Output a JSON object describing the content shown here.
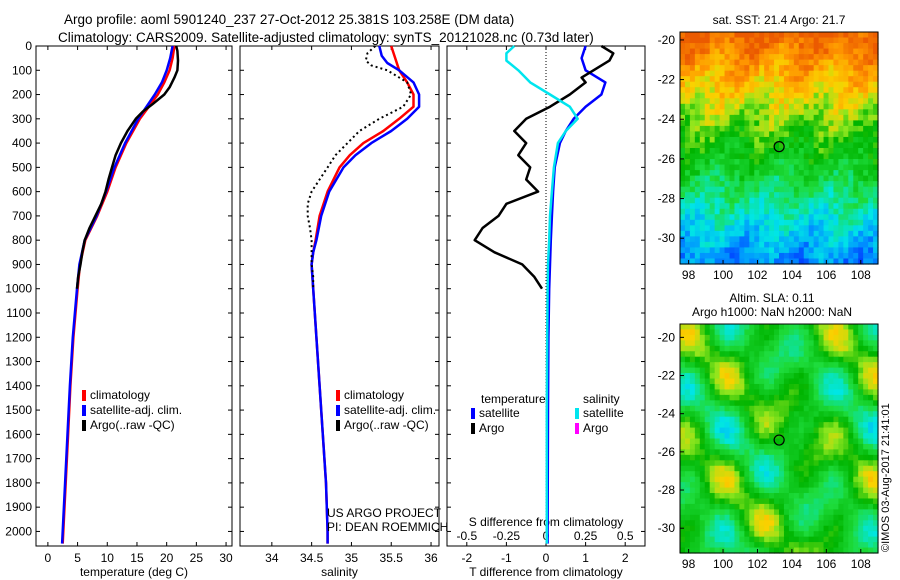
{
  "header": {
    "line1": "Argo profile: aoml 5901240_237 27-Oct-2012 25.381S 103.258E (DM data)",
    "line2": "Climatology: CARS2009. Satellite-adjusted climatology: synTS_20121028.nc (0.73d later)"
  },
  "colors": {
    "climatology": "#ff0000",
    "satellite": "#0000ff",
    "argo": "#000000",
    "sat_salinity": "#00e5ee",
    "argo_salinity": "#ff00ff"
  },
  "chart_data": [
    {
      "type": "line",
      "name": "temperature",
      "xlabel": "temperature (deg C)",
      "xlim": [
        -2,
        31
      ],
      "ylim": [
        0,
        2060
      ],
      "xticks": [
        0,
        5,
        10,
        15,
        20,
        25,
        30
      ],
      "yticks": [
        0,
        100,
        200,
        300,
        400,
        500,
        600,
        700,
        800,
        900,
        1000,
        1100,
        1200,
        1300,
        1400,
        1500,
        1600,
        1700,
        1800,
        1900,
        2000
      ],
      "legend": [
        "climatology",
        "satellite-adj. clim.",
        "Argo(..raw -QC)"
      ],
      "series": [
        {
          "name": "climatology",
          "color": "#ff0000",
          "depth": [
            0,
            50,
            100,
            150,
            200,
            250,
            300,
            400,
            500,
            600,
            700,
            800,
            900,
            1000,
            1200,
            1400,
            1600,
            1800,
            2000,
            2050
          ],
          "values": [
            21.3,
            21.0,
            20.5,
            19.6,
            18.5,
            17.0,
            15.5,
            13.2,
            11.4,
            10.0,
            8.3,
            6.3,
            5.4,
            5.0,
            4.3,
            3.8,
            3.4,
            3.0,
            2.6,
            2.5
          ]
        },
        {
          "name": "satellite-adj. clim.",
          "color": "#0000ff",
          "depth": [
            0,
            50,
            100,
            150,
            200,
            250,
            300,
            400,
            500,
            600,
            700,
            800,
            900,
            1000,
            1200,
            1400,
            1600,
            1800,
            2000,
            2050
          ],
          "values": [
            21.0,
            20.6,
            20.0,
            19.2,
            18.0,
            16.6,
            15.2,
            13.0,
            11.2,
            9.8,
            8.2,
            6.2,
            5.3,
            4.9,
            4.2,
            3.7,
            3.3,
            2.9,
            2.5,
            2.4
          ]
        },
        {
          "name": "Argo(..raw -QC)",
          "color": "#000000",
          "depth": [
            0,
            20,
            60,
            100,
            130,
            170,
            200,
            240,
            270,
            300,
            350,
            400,
            450,
            500,
            550,
            600,
            650,
            700,
            750,
            800,
            850,
            900,
            950,
            1000
          ],
          "values": [
            21.6,
            21.8,
            21.9,
            21.8,
            21.3,
            20.5,
            19.6,
            17.6,
            16.0,
            14.8,
            13.4,
            12.3,
            11.4,
            10.8,
            10.2,
            9.7,
            9.0,
            8.0,
            7.0,
            6.2,
            5.8,
            5.5,
            5.1,
            4.9
          ]
        }
      ]
    },
    {
      "type": "line",
      "name": "salinity",
      "xlabel": "salinity",
      "xlim": [
        33.6,
        36.1
      ],
      "ylim": [
        0,
        2060
      ],
      "xticks": [
        34,
        34.5,
        35,
        35.5,
        36
      ],
      "xticklabels": [
        "34",
        "34.5",
        "35",
        "35.5",
        "36"
      ],
      "legend": [
        "climatology",
        "satellite-adj. clim.",
        "Argo(..raw -QC)"
      ],
      "annotation": [
        "US ARGO PROJECT",
        "PI: DEAN ROEMMICH"
      ],
      "series": [
        {
          "name": "climatology",
          "color": "#ff0000",
          "depth": [
            0,
            50,
            100,
            150,
            200,
            250,
            300,
            350,
            400,
            450,
            500,
            600,
            700,
            800,
            850,
            900,
            1000,
            1200,
            1400,
            1600,
            1800,
            2000,
            2050
          ],
          "values": [
            35.5,
            35.55,
            35.6,
            35.7,
            35.78,
            35.78,
            35.6,
            35.4,
            35.15,
            34.98,
            34.85,
            34.7,
            34.6,
            34.55,
            34.52,
            34.5,
            34.52,
            34.56,
            34.6,
            34.64,
            34.68,
            34.7,
            34.7
          ]
        },
        {
          "name": "satellite-adj. clim.",
          "color": "#0000ff",
          "depth": [
            0,
            40,
            70,
            100,
            150,
            200,
            250,
            300,
            350,
            400,
            450,
            500,
            600,
            700,
            800,
            850,
            900,
            1000,
            1200,
            1400,
            1600,
            1800,
            2000,
            2050
          ],
          "values": [
            35.35,
            35.38,
            35.45,
            35.6,
            35.78,
            35.85,
            35.85,
            35.7,
            35.5,
            35.25,
            35.05,
            34.9,
            34.72,
            34.62,
            34.56,
            34.52,
            34.5,
            34.52,
            34.56,
            34.6,
            34.64,
            34.68,
            34.7,
            34.7
          ]
        },
        {
          "name": "Argo(..raw -QC)",
          "color": "#000000",
          "dotted": true,
          "depth": [
            0,
            30,
            60,
            80,
            100,
            150,
            200,
            250,
            300,
            350,
            400,
            450,
            500,
            550,
            600,
            650,
            700,
            750,
            800,
            850,
            900,
            950,
            1000
          ],
          "values": [
            35.3,
            35.2,
            35.18,
            35.25,
            35.45,
            35.7,
            35.75,
            35.65,
            35.35,
            35.1,
            34.95,
            34.8,
            34.7,
            34.6,
            34.5,
            34.45,
            34.45,
            34.48,
            34.5,
            34.5,
            34.5,
            34.52,
            34.52
          ]
        }
      ]
    },
    {
      "type": "line",
      "name": "differences",
      "xlabel": "T difference from climatology",
      "xlabel_top": "S difference from climatology",
      "xlim": [
        -2.5,
        2.5
      ],
      "ylim": [
        0,
        2060
      ],
      "xticks": [
        -2,
        -1,
        0,
        1,
        2
      ],
      "xticklabels": [
        "-2",
        "-1",
        "0",
        "1",
        "2"
      ],
      "sticks": [
        -0.5,
        -0.25,
        0,
        0.25,
        0.5
      ],
      "sticklabels": [
        "-0.5",
        "-0.25",
        "0",
        "0.25",
        "0.5"
      ],
      "legend_temperature": {
        "title": "temperature",
        "items": [
          "satellite",
          "Argo"
        ]
      },
      "legend_salinity": {
        "title": "salinity",
        "items": [
          "satellite",
          "Argo"
        ]
      },
      "series": [
        {
          "name": "T satellite",
          "color": "#0000ff",
          "depth": [
            0,
            50,
            100,
            150,
            200,
            250,
            300,
            350,
            400,
            500,
            600,
            700,
            800,
            900,
            1000,
            1200,
            1500,
            2000,
            2050
          ],
          "values": [
            1.0,
            0.9,
            1.0,
            1.5,
            1.4,
            1.0,
            0.7,
            0.5,
            0.35,
            0.22,
            0.18,
            0.15,
            0.12,
            0.1,
            0.08,
            0.06,
            0.05,
            0.04,
            0.04
          ]
        },
        {
          "name": "T Argo",
          "color": "#000000",
          "depth": [
            0,
            30,
            60,
            100,
            130,
            150,
            200,
            250,
            300,
            350,
            400,
            450,
            500,
            550,
            600,
            650,
            700,
            750,
            800,
            850,
            900,
            950,
            1000
          ],
          "values": [
            1.4,
            1.7,
            1.6,
            1.2,
            0.9,
            1.0,
            0.6,
            0.1,
            -0.5,
            -0.8,
            -0.5,
            -0.7,
            -0.4,
            -0.5,
            -0.2,
            -1.0,
            -1.2,
            -1.6,
            -1.8,
            -1.3,
            -0.6,
            -0.3,
            -0.1
          ]
        },
        {
          "name": "S satellite",
          "color": "#00e5ee",
          "depth": [
            0,
            30,
            60,
            100,
            150,
            200,
            250,
            300,
            350,
            400,
            500,
            600,
            700,
            800,
            900,
            1000,
            1200,
            1500,
            2000,
            2050
          ],
          "values": [
            -0.8,
            -1.0,
            -1.0,
            -0.7,
            -0.4,
            0.1,
            0.6,
            0.8,
            0.5,
            0.3,
            0.2,
            0.15,
            0.1,
            0.08,
            0.05,
            0.04,
            0.03,
            0.02,
            0.02,
            0.02
          ]
        },
        {
          "name": "S Argo",
          "color": "#ff00ff",
          "depth": [],
          "values": []
        }
      ]
    },
    {
      "type": "heatmap",
      "name": "sst-map",
      "title": "sat. SST: 21.4 Argo: 21.7",
      "xlim": [
        97.5,
        109
      ],
      "ylim": [
        -31.3,
        -19.6
      ],
      "xticks": [
        98,
        100,
        102,
        104,
        106,
        108
      ],
      "yticks": [
        -20,
        -22,
        -24,
        -26,
        -28,
        -30
      ],
      "marker": {
        "lon": 103.258,
        "lat": -25.381
      }
    },
    {
      "type": "heatmap",
      "name": "sla-map",
      "title": "Altim. SLA: 0.11",
      "subtitle": "Argo h1000: NaN h2000: NaN",
      "xlim": [
        97.5,
        109
      ],
      "ylim": [
        -31.3,
        -19.3
      ],
      "xticks": [
        98,
        100,
        102,
        104,
        106,
        108
      ],
      "yticks": [
        -20,
        -22,
        -24,
        -26,
        -28,
        -30
      ],
      "marker": {
        "lon": 103.258,
        "lat": -25.381
      }
    }
  ],
  "footer": {
    "stamp": "©IMOS 03-Aug-2017 21:41:01"
  }
}
